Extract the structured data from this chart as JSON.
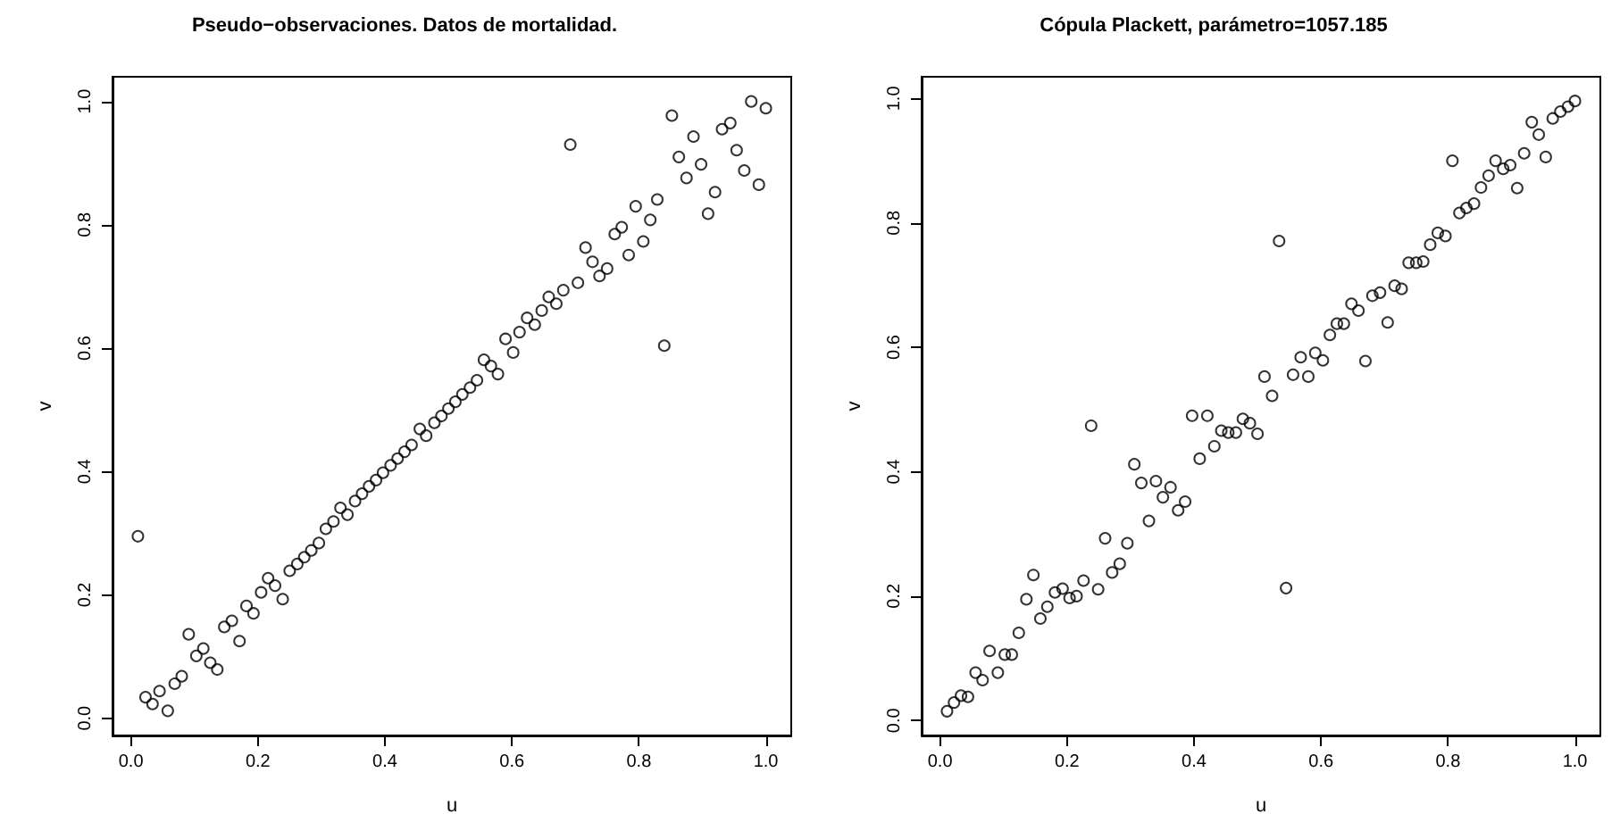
{
  "chart_data": [
    {
      "type": "scatter",
      "title": "Pseudo−observaciones. Datos de mortalidad.",
      "xlabel": "u",
      "ylabel": "v",
      "marker": "circle",
      "xlim": [
        -0.029,
        1.04
      ],
      "ylim": [
        -0.028,
        1.04
      ],
      "xticks": [
        {
          "value": 0,
          "label": "0.0"
        },
        {
          "value": 0.2,
          "label": "0.2"
        },
        {
          "value": 0.4,
          "label": "0.4"
        },
        {
          "value": 0.6,
          "label": "0.6"
        },
        {
          "value": 0.8,
          "label": "0.8"
        },
        {
          "value": 1,
          "label": "1.0"
        }
      ],
      "yticks": [
        {
          "value": 0,
          "label": "0.0"
        },
        {
          "value": 0.2,
          "label": "0.2"
        },
        {
          "value": 0.4,
          "label": "0.4"
        },
        {
          "value": 0.6,
          "label": "0.6"
        },
        {
          "value": 0.8,
          "label": "0.8"
        },
        {
          "value": 1,
          "label": "1.0"
        }
      ],
      "series": [
        {
          "color": "#000000",
          "x": [
            0.011,
            0.023,
            0.034,
            0.045,
            0.058,
            0.069,
            0.08,
            0.091,
            0.103,
            0.114,
            0.125,
            0.136,
            0.147,
            0.159,
            0.171,
            0.182,
            0.193,
            0.205,
            0.216,
            0.227,
            0.239,
            0.25,
            0.262,
            0.273,
            0.284,
            0.296,
            0.307,
            0.319,
            0.33,
            0.341,
            0.353,
            0.364,
            0.375,
            0.386,
            0.397,
            0.409,
            0.42,
            0.431,
            0.442,
            0.455,
            0.465,
            0.478,
            0.489,
            0.5,
            0.511,
            0.522,
            0.534,
            0.545,
            0.556,
            0.567,
            0.578,
            0.59,
            0.602,
            0.612,
            0.624,
            0.636,
            0.647,
            0.658,
            0.67,
            0.681,
            0.692,
            0.704,
            0.716,
            0.727,
            0.738,
            0.75,
            0.762,
            0.773,
            0.784,
            0.795,
            0.807,
            0.818,
            0.829,
            0.84,
            0.852,
            0.863,
            0.875,
            0.886,
            0.898,
            0.909,
            0.92,
            0.931,
            0.944,
            0.954,
            0.966,
            0.977,
            0.989,
            1.0
          ],
          "values": [
            0.295,
            0.034,
            0.023,
            0.044,
            0.012,
            0.056,
            0.068,
            0.136,
            0.101,
            0.113,
            0.09,
            0.079,
            0.148,
            0.158,
            0.125,
            0.182,
            0.17,
            0.204,
            0.227,
            0.215,
            0.193,
            0.239,
            0.25,
            0.261,
            0.272,
            0.284,
            0.307,
            0.319,
            0.341,
            0.33,
            0.352,
            0.364,
            0.376,
            0.386,
            0.398,
            0.41,
            0.421,
            0.432,
            0.443,
            0.469,
            0.458,
            0.479,
            0.49,
            0.502,
            0.513,
            0.525,
            0.536,
            0.548,
            0.581,
            0.571,
            0.558,
            0.615,
            0.593,
            0.626,
            0.649,
            0.638,
            0.661,
            0.683,
            0.672,
            0.694,
            0.93,
            0.706,
            0.763,
            0.74,
            0.717,
            0.729,
            0.785,
            0.796,
            0.751,
            0.83,
            0.773,
            0.808,
            0.841,
            0.604,
            0.977,
            0.91,
            0.876,
            0.943,
            0.898,
            0.818,
            0.853,
            0.955,
            0.965,
            0.921,
            0.888,
            1.0,
            0.865,
            0.989
          ]
        }
      ]
    },
    {
      "type": "scatter",
      "title": "Cópula Plackett, parámetro=1057.185",
      "xlabel": "u",
      "ylabel": "v",
      "marker": "circle",
      "xlim": [
        -0.029,
        1.04
      ],
      "ylim": [
        -0.024,
        1.035
      ],
      "xticks": [
        {
          "value": 0,
          "label": "0.0"
        },
        {
          "value": 0.2,
          "label": "0.2"
        },
        {
          "value": 0.4,
          "label": "0.4"
        },
        {
          "value": 0.6,
          "label": "0.6"
        },
        {
          "value": 0.8,
          "label": "0.8"
        },
        {
          "value": 1,
          "label": "1.0"
        }
      ],
      "yticks": [
        {
          "value": 0,
          "label": "0.0"
        },
        {
          "value": 0.2,
          "label": "0.2"
        },
        {
          "value": 0.4,
          "label": "0.4"
        },
        {
          "value": 0.6,
          "label": "0.6"
        },
        {
          "value": 0.8,
          "label": "0.8"
        },
        {
          "value": 1,
          "label": "1.0"
        }
      ],
      "series": [
        {
          "color": "#000000",
          "x": [
            0.011,
            0.022,
            0.033,
            0.044,
            0.056,
            0.067,
            0.078,
            0.091,
            0.102,
            0.113,
            0.124,
            0.136,
            0.147,
            0.158,
            0.169,
            0.181,
            0.193,
            0.204,
            0.215,
            0.226,
            0.238,
            0.249,
            0.26,
            0.271,
            0.283,
            0.295,
            0.306,
            0.317,
            0.329,
            0.34,
            0.351,
            0.363,
            0.375,
            0.386,
            0.397,
            0.409,
            0.421,
            0.432,
            0.443,
            0.454,
            0.466,
            0.477,
            0.488,
            0.5,
            0.511,
            0.523,
            0.534,
            0.545,
            0.556,
            0.568,
            0.58,
            0.591,
            0.603,
            0.614,
            0.625,
            0.636,
            0.648,
            0.659,
            0.67,
            0.681,
            0.693,
            0.705,
            0.716,
            0.727,
            0.738,
            0.75,
            0.761,
            0.772,
            0.784,
            0.796,
            0.807,
            0.818,
            0.829,
            0.841,
            0.852,
            0.864,
            0.875,
            0.887,
            0.898,
            0.909,
            0.92,
            0.932,
            0.943,
            0.954,
            0.965,
            0.977,
            0.989,
            1.0
          ],
          "values": [
            0.015,
            0.029,
            0.04,
            0.038,
            0.077,
            0.065,
            0.112,
            0.077,
            0.106,
            0.106,
            0.141,
            0.195,
            0.234,
            0.164,
            0.183,
            0.206,
            0.212,
            0.197,
            0.2,
            0.225,
            0.474,
            0.211,
            0.293,
            0.238,
            0.252,
            0.285,
            0.412,
            0.382,
            0.321,
            0.385,
            0.359,
            0.375,
            0.338,
            0.352,
            0.49,
            0.421,
            0.49,
            0.441,
            0.466,
            0.463,
            0.463,
            0.485,
            0.478,
            0.461,
            0.553,
            0.522,
            0.771,
            0.213,
            0.556,
            0.584,
            0.553,
            0.591,
            0.579,
            0.62,
            0.638,
            0.638,
            0.67,
            0.659,
            0.578,
            0.683,
            0.688,
            0.64,
            0.699,
            0.694,
            0.736,
            0.736,
            0.738,
            0.765,
            0.784,
            0.779,
            0.9,
            0.816,
            0.824,
            0.831,
            0.857,
            0.876,
            0.9,
            0.887,
            0.893,
            0.856,
            0.912,
            0.962,
            0.942,
            0.906,
            0.968,
            0.979,
            0.987,
            0.996
          ]
        }
      ]
    }
  ]
}
